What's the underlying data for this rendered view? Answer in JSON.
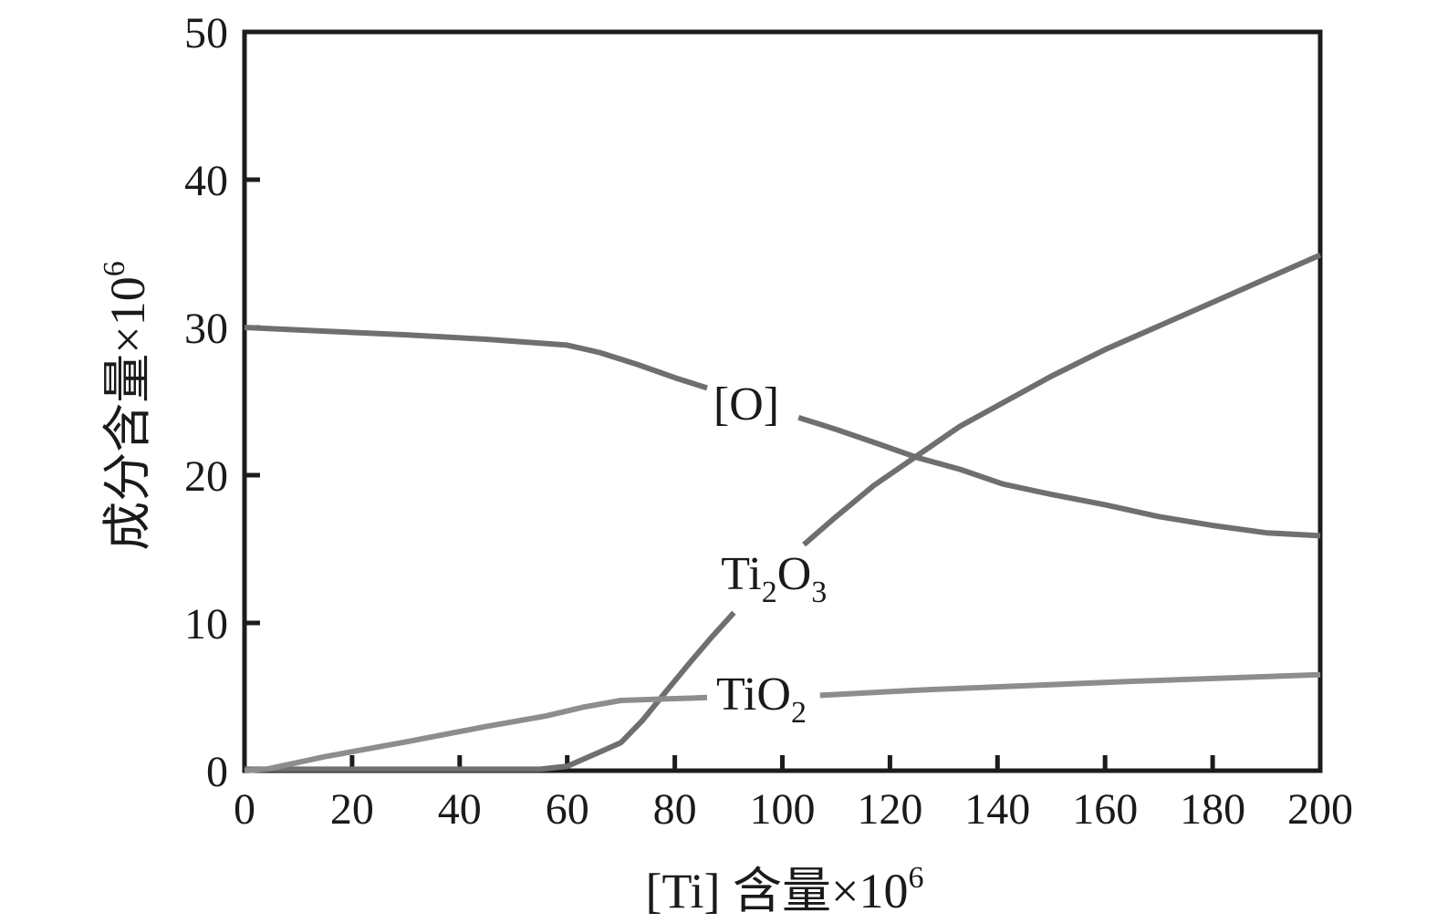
{
  "figure": {
    "background_color": "#ffffff",
    "axis_color": "#1c1c1c",
    "text_color": "#1a1a1a"
  },
  "chart_data": {
    "type": "line",
    "title": "",
    "xlabel": "[Ti] 含量×10⁶",
    "ylabel": "成分含量×10⁶",
    "xlabel_parts": [
      {
        "t": "[Ti] 含量×10"
      },
      {
        "t": "6",
        "sup": true
      }
    ],
    "ylabel_parts": [
      {
        "t": "成分含量×10"
      },
      {
        "t": "6",
        "sup": true
      }
    ],
    "xlim": [
      0,
      200
    ],
    "ylim": [
      0,
      50
    ],
    "grid": false,
    "legend": "inline-annotations",
    "x_tick_labels": [
      0,
      20,
      40,
      60,
      80,
      100,
      120,
      140,
      160,
      180,
      200
    ],
    "x_tick_marks": [
      20,
      40,
      60,
      80,
      100,
      120,
      140,
      160,
      180
    ],
    "y_tick_labels": [
      0,
      10,
      20,
      30,
      40,
      50
    ],
    "y_tick_marks": [
      10,
      20,
      30,
      40
    ],
    "series": [
      {
        "id": "O",
        "name": "[O]",
        "label_parts": [
          {
            "t": "[O]"
          }
        ],
        "color": "#6f6f6f",
        "label_anchor": {
          "x": 93.3,
          "y": 23.77,
          "align": "middle"
        },
        "segments": [
          [
            [
              0,
              30
            ],
            [
              15,
              29.75
            ],
            [
              30,
              29.5
            ],
            [
              45,
              29.2
            ],
            [
              60,
              28.8
            ],
            [
              66,
              28.3
            ],
            [
              73,
              27.5
            ],
            [
              80,
              26.6
            ],
            [
              86,
              25.9
            ]
          ],
          [
            [
              103,
              23.9
            ],
            [
              110,
              23.1
            ],
            [
              118,
              22.1
            ],
            [
              125,
              21.2
            ],
            [
              133,
              20.4
            ],
            [
              141,
              19.4
            ],
            [
              150,
              18.7
            ],
            [
              160,
              18.0
            ],
            [
              170,
              17.2
            ],
            [
              180,
              16.6
            ],
            [
              190,
              16.1
            ],
            [
              200,
              15.9
            ]
          ]
        ]
      },
      {
        "id": "Ti2O3",
        "name": "Ti2O3",
        "label_parts": [
          {
            "t": "Ti"
          },
          {
            "t": "2",
            "sub": true
          },
          {
            "t": "O"
          },
          {
            "t": "3",
            "sub": true
          }
        ],
        "color": "#6f6f6f",
        "label_anchor": {
          "x": 88.6,
          "y": 12.28,
          "align": "start"
        },
        "segments": [
          [
            [
              0,
              0.1
            ],
            [
              55,
              0.1
            ],
            [
              60,
              0.3
            ],
            [
              65,
              1.1
            ],
            [
              70,
              1.9
            ],
            [
              74,
              3.4
            ],
            [
              78,
              5.2
            ],
            [
              83,
              7.4
            ],
            [
              87,
              9.1
            ],
            [
              91,
              10.7
            ]
          ],
          [
            [
              104,
              15.3
            ],
            [
              110,
              17.2
            ],
            [
              117,
              19.3
            ],
            [
              125,
              21.3
            ],
            [
              133,
              23.3
            ],
            [
              141,
              24.9
            ],
            [
              150,
              26.7
            ],
            [
              160,
              28.5
            ],
            [
              170,
              30.1
            ],
            [
              180,
              31.7
            ],
            [
              190,
              33.3
            ],
            [
              200,
              34.9
            ]
          ]
        ]
      },
      {
        "id": "TiO2",
        "name": "TiO2",
        "label_parts": [
          {
            "t": "TiO"
          },
          {
            "t": "2",
            "sub": true
          }
        ],
        "color": "#8d8d8d",
        "label_anchor": {
          "x": 87.7,
          "y": 4.14,
          "align": "start"
        },
        "segments": [
          [
            [
              0,
              0
            ],
            [
              4,
              0.1
            ],
            [
              15,
              0.95
            ],
            [
              30,
              1.95
            ],
            [
              45,
              3.0
            ],
            [
              56,
              3.7
            ],
            [
              63,
              4.3
            ],
            [
              70,
              4.75
            ],
            [
              78,
              4.85
            ],
            [
              86,
              4.95
            ]
          ],
          [
            [
              107,
              5.1
            ],
            [
              125,
              5.45
            ],
            [
              145,
              5.75
            ],
            [
              165,
              6.05
            ],
            [
              185,
              6.3
            ],
            [
              200,
              6.5
            ]
          ]
        ]
      }
    ]
  }
}
